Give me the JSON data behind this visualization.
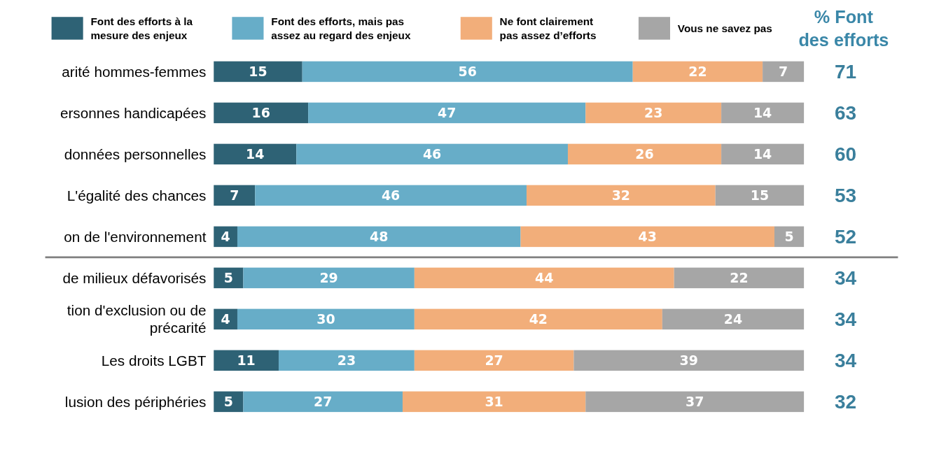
{
  "chart_data": {
    "type": "bar",
    "orientation": "horizontal",
    "stacked": true,
    "data_labels": true,
    "legend": "top",
    "xlim": [
      0,
      100
    ],
    "tick_labels": false,
    "categories": [
      "arité hommes-femmes",
      "ersonnes handicapées",
      "données personnelles",
      "L'égalité des chances",
      "on de l'environnement",
      "de milieux défavorisés",
      "tion d'exclusion ou de précarité",
      "Les droits LGBT",
      "lusion des périphéries"
    ],
    "series": [
      {
        "name": "Font des efforts à la mesure des enjeux",
        "color": "#2e6275",
        "values": [
          15,
          16,
          14,
          7,
          4,
          5,
          4,
          11,
          5
        ]
      },
      {
        "name": "Font des efforts, mais pas assez au regard des enjeux",
        "color": "#67adc8",
        "values": [
          56,
          47,
          46,
          46,
          48,
          29,
          30,
          23,
          27
        ]
      },
      {
        "name": "Ne font clairement pas assez d’efforts",
        "color": "#f2ae7a",
        "values": [
          22,
          23,
          26,
          32,
          43,
          44,
          42,
          27,
          31
        ]
      },
      {
        "name": "Vous ne savez pas",
        "color": "#a6a6a6",
        "values": [
          7,
          14,
          14,
          15,
          5,
          22,
          24,
          39,
          37
        ]
      }
    ],
    "annotations": [
      "% Font des efforts",
      "71",
      "63",
      "60",
      "53",
      "52",
      "34",
      "34",
      "34",
      "32"
    ]
  }
}
